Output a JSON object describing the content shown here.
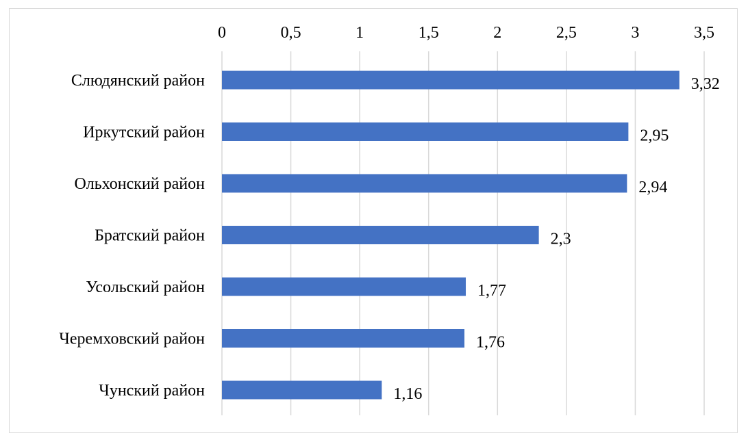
{
  "chart_data": {
    "type": "bar",
    "orientation": "horizontal",
    "title": "",
    "xlabel": "",
    "ylabel": "",
    "xlim": [
      0,
      3.5
    ],
    "x_ticks": [
      0,
      0.5,
      1,
      1.5,
      2,
      2.5,
      3,
      3.5
    ],
    "x_tick_labels": [
      "0",
      "0,5",
      "1",
      "1,5",
      "2",
      "2,5",
      "3",
      "3,5"
    ],
    "x_axis_position": "top",
    "grid": true,
    "legend": "none",
    "categories": [
      "Слюдянский район",
      "Иркутский район",
      "Ольхонский район",
      "Братский район",
      "Усольский район",
      "Черемховский район",
      "Чунский район"
    ],
    "values": [
      3.32,
      2.95,
      2.94,
      2.3,
      1.77,
      1.76,
      1.16
    ],
    "value_labels": [
      "3,32",
      "2,95",
      "2,94",
      "2,3",
      "1,77",
      "1,76",
      "1,16"
    ],
    "colors": {
      "bar": "#4472C4",
      "grid": "#d9d9d9",
      "frame": "#d9d9d9",
      "text": "#000000"
    }
  }
}
